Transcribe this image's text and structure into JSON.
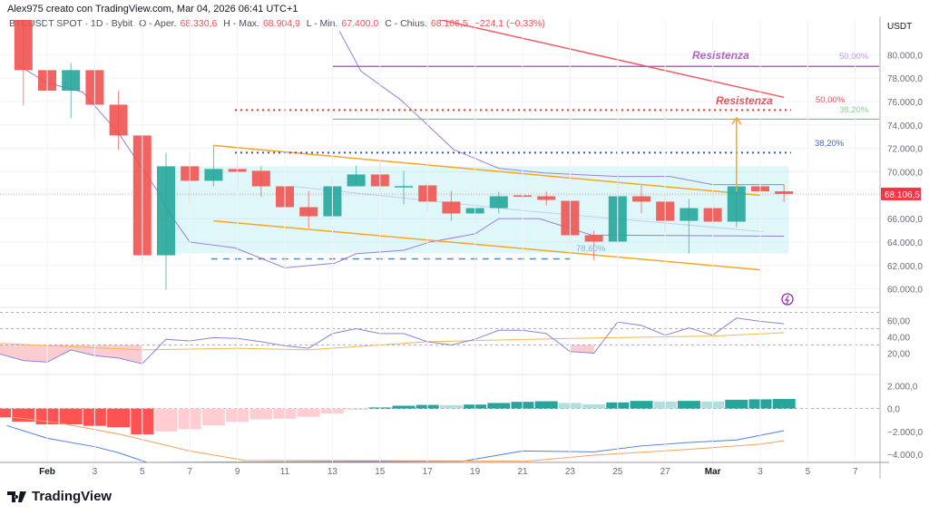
{
  "header": {
    "credit": "Alex975 creato con TradingView.com, Mar 04, 2026 06:41 UTC+1"
  },
  "legend": {
    "symbol": "BTCUSDT SPOT · 1D · Bybit",
    "open_label": "O - Aper.",
    "open": "68.330,6",
    "high_label": "H - Max.",
    "high": "68.904,9",
    "low_label": "L - Min.",
    "low": "67.400,0",
    "close_label": "C - Chius.",
    "close": "68.106,5",
    "change": "−224,1 (−0,33%)"
  },
  "logo": {
    "text": "TradingView"
  },
  "colors": {
    "up": "#26a69a",
    "down": "#ef5350",
    "bb": "#9c7fd6",
    "ma": "#f05a64",
    "channel": "#f5a623",
    "rsi": "#8a84d9",
    "rsi_ma": "#f5b64f",
    "macd": "#4f7fe0",
    "signal": "#f7a05b"
  },
  "chart_data": [
    {
      "type": "candlestick",
      "title": "BTCUSDT SPOT 1D Bybit",
      "currency_label": "USDT",
      "ylim": [
        58500,
        82500
      ],
      "yticks": [
        60000,
        62000,
        64000,
        66000,
        68000,
        70000,
        72000,
        74000,
        76000,
        78000,
        80000
      ],
      "ytick_labels": [
        "60.000,0",
        "62.000,0",
        "64.000,0",
        "66.000,0",
        "",
        "70.000,0",
        "72.000,0",
        "74.000,0",
        "76.000,0",
        "78.000,0",
        "80.000,0"
      ],
      "last_price": 68106.5,
      "last_price_label": "68.106,5",
      "x_start_day": -1,
      "xticks": [
        {
          "day": 0,
          "label": "Feb"
        },
        {
          "day": 2,
          "label": "3"
        },
        {
          "day": 4,
          "label": "5"
        },
        {
          "day": 6,
          "label": "7"
        },
        {
          "day": 8,
          "label": "9"
        },
        {
          "day": 10,
          "label": "11"
        },
        {
          "day": 12,
          "label": "13"
        },
        {
          "day": 14,
          "label": "15"
        },
        {
          "day": 16,
          "label": "17"
        },
        {
          "day": 18,
          "label": "19"
        },
        {
          "day": 20,
          "label": "21"
        },
        {
          "day": 22,
          "label": "23"
        },
        {
          "day": 24,
          "label": "25"
        },
        {
          "day": 26,
          "label": "27"
        },
        {
          "day": 28,
          "label": "Mar"
        },
        {
          "day": 30,
          "label": "3"
        },
        {
          "day": 32,
          "label": "5"
        },
        {
          "day": 34,
          "label": "7"
        }
      ],
      "ohlc": [
        [
          84000,
          84500,
          75660,
          78680
        ],
        [
          78680,
          79380,
          75660,
          76920
        ],
        [
          76920,
          79300,
          74570,
          78680
        ],
        [
          78680,
          79150,
          72950,
          75730
        ],
        [
          75730,
          76900,
          71860,
          73100
        ],
        [
          73100,
          73100,
          62250,
          62870
        ],
        [
          62870,
          71630,
          59930,
          70470
        ],
        [
          70470,
          71630,
          67290,
          69230
        ],
        [
          69230,
          72250,
          68760,
          70240
        ],
        [
          70240,
          71400,
          68300,
          70000
        ],
        [
          70080,
          70470,
          67900,
          68760
        ],
        [
          68760,
          69230,
          65660,
          66980
        ],
        [
          66980,
          68370,
          65200,
          66200
        ],
        [
          66200,
          69460,
          65900,
          68760
        ],
        [
          68760,
          70540,
          68760,
          69770
        ],
        [
          69770,
          70930,
          67990,
          68760
        ],
        [
          68760,
          70080,
          67210,
          68780
        ],
        [
          68840,
          69150,
          66590,
          67450
        ],
        [
          67450,
          68370,
          65810,
          66440
        ],
        [
          66440,
          67290,
          65580,
          66900
        ],
        [
          66900,
          68300,
          66440,
          67910
        ],
        [
          67990,
          68680,
          67520,
          67910
        ],
        [
          67910,
          68300,
          67130,
          67600
        ],
        [
          67520,
          67520,
          63800,
          64580
        ],
        [
          64580,
          64960,
          62480,
          64040
        ],
        [
          64040,
          69930,
          63900,
          67910
        ],
        [
          67910,
          68840,
          66440,
          67450
        ],
        [
          67450,
          68140,
          64880,
          65810
        ],
        [
          65810,
          67680,
          63030,
          66900
        ],
        [
          66900,
          68220,
          65040,
          65740
        ],
        [
          65740,
          68760,
          65270,
          68760
        ],
        [
          68760,
          69230,
          66130,
          68330
        ],
        [
          68330.6,
          68904.9,
          67400,
          68106.5
        ]
      ],
      "bb_upper": [
        [
          12.3,
          82000
        ],
        [
          13.2,
          78600
        ],
        [
          14.9,
          76100
        ],
        [
          17.1,
          71900
        ],
        [
          19.0,
          70300
        ],
        [
          20.9,
          69900
        ],
        [
          24.0,
          69600
        ],
        [
          26.2,
          69600
        ],
        [
          28.0,
          68900
        ],
        [
          31.0,
          68900
        ]
      ],
      "bb_basis": [
        [
          10.3,
          68760
        ],
        [
          20.1,
          66670
        ],
        [
          30.1,
          64890
        ]
      ],
      "bb_lower": [
        [
          -1.2,
          79070
        ],
        [
          0,
          77600
        ],
        [
          1.5,
          76800
        ],
        [
          3,
          73300
        ],
        [
          4.6,
          68500
        ],
        [
          5.2,
          66300
        ],
        [
          6.0,
          64000
        ],
        [
          7.9,
          63500
        ],
        [
          10.0,
          61800
        ],
        [
          12.1,
          62200
        ],
        [
          13.0,
          63000
        ],
        [
          15.0,
          63300
        ],
        [
          16.1,
          64000
        ],
        [
          18.0,
          64700
        ],
        [
          19.0,
          66000
        ],
        [
          20.7,
          66000
        ],
        [
          22.9,
          64600
        ],
        [
          31.0,
          64500
        ]
      ],
      "ma_line": [
        [
          16.5,
          83000
        ],
        [
          31.0,
          76360
        ]
      ],
      "annotations": {
        "resistance_purple": {
          "price": 79000,
          "from_day": 12,
          "to_day": 35,
          "label": "Resistenza",
          "fib_label": "50,00%"
        },
        "resistance_red": {
          "price": 75270,
          "from_day": 7.9,
          "to_day": 31.3,
          "label": "Resistenza",
          "fib_label": "50,00%"
        },
        "fib_green": {
          "price": 74500,
          "from_day": 12,
          "to_day": 35,
          "fib_label": "38,20%"
        },
        "fib_blue": {
          "price": 71630,
          "from_day": 7.9,
          "to_day": 31.3,
          "fib_label": "38,20%"
        },
        "fib_dashed": {
          "price": 62560,
          "from_day": 6.9,
          "to_day": 22,
          "fib_label": "78,60%"
        },
        "range_box": {
          "from_day": 5,
          "to_day": 31.2,
          "top": 70470,
          "bottom": 63030
        },
        "channel_upper": [
          [
            7.0,
            72250
          ],
          [
            30.0,
            67990
          ]
        ],
        "channel_lower": [
          [
            7.0,
            65810
          ],
          [
            30.0,
            61630
          ]
        ],
        "arrow": {
          "day": 29.0,
          "from": 68300,
          "to": 74600
        }
      }
    },
    {
      "type": "line",
      "title": "RSI",
      "ylim": [
        -5,
        75
      ],
      "yticks": [
        20,
        40,
        60
      ],
      "ytick_labels": [
        "20,00",
        "40,00",
        "60,00"
      ],
      "bands": [
        70,
        50,
        30
      ],
      "rsi": [
        19,
        11,
        9,
        24,
        17,
        14,
        7,
        37,
        35,
        39,
        38,
        34,
        29,
        26,
        44,
        50,
        44,
        44,
        34,
        30,
        37,
        48,
        48,
        44,
        22,
        20,
        58,
        54,
        42,
        51,
        42,
        63,
        59,
        56
      ],
      "rsi_start_day": -2,
      "rsi_ma": [
        [
          -2,
          32
        ],
        [
          4,
          24
        ],
        [
          8,
          26
        ],
        [
          11,
          24
        ],
        [
          16,
          34
        ],
        [
          22,
          38
        ],
        [
          28,
          41
        ],
        [
          31,
          45
        ]
      ]
    },
    {
      "type": "bar",
      "title": "MACD",
      "ylim": [
        -4700,
        2900
      ],
      "yticks": [
        -4000,
        -2000,
        0,
        2000
      ],
      "ytick_labels": [
        "−4.000,0",
        "−2.000,0",
        "0,0",
        "2.000,0"
      ],
      "hist_start_day": -2,
      "histogram": [
        -770,
        -1140,
        -1380,
        -1380,
        -1510,
        -1630,
        -2250,
        -2000,
        -1800,
        -1460,
        -1160,
        -940,
        -890,
        -720,
        -440,
        -100,
        100,
        250,
        320,
        300,
        350,
        490,
        590,
        640,
        490,
        370,
        540,
        670,
        620,
        670,
        620,
        770,
        810,
        840
      ],
      "macd": [
        [
          -1.7,
          -1480
        ],
        [
          0,
          -2590
        ],
        [
          2,
          -3330
        ],
        [
          3,
          -3850
        ],
        [
          4.2,
          -4700
        ],
        [
          17.5,
          -4590
        ],
        [
          20,
          -3700
        ],
        [
          23,
          -3780
        ],
        [
          25,
          -3260
        ],
        [
          27,
          -2960
        ],
        [
          29,
          -2740
        ],
        [
          31,
          -1930
        ]
      ],
      "signal": [
        [
          -1.5,
          -740
        ],
        [
          0.5,
          -1260
        ],
        [
          3,
          -2220
        ],
        [
          6,
          -3700
        ],
        [
          8.3,
          -4520
        ],
        [
          20.2,
          -4590
        ],
        [
          23,
          -4070
        ],
        [
          27,
          -3560
        ],
        [
          30,
          -3110
        ],
        [
          31,
          -2810
        ]
      ]
    }
  ]
}
